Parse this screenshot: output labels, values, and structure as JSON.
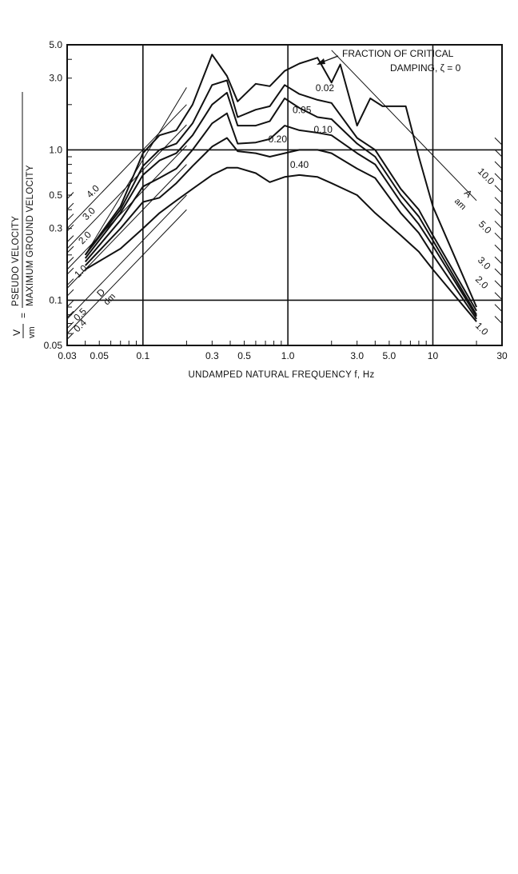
{
  "chart_data": {
    "type": "line",
    "xscale": "log",
    "yscale": "log",
    "xlim": [
      0.03,
      30
    ],
    "ylim": [
      0.05,
      5.0
    ],
    "grid": "major-decades",
    "xlabel": "UNDAMPED NATURAL FREQUENCY f, Hz",
    "ylabel_num": "V",
    "ylabel_den": "vm",
    "ylabel_eq": "=",
    "ylabel_top": "PSEUDO VELOCITY",
    "ylabel_bottom": "MAXIMUM GROUND VELOCITY",
    "xticks": [
      {
        "v": 0.03,
        "label": "0.03"
      },
      {
        "v": 0.05,
        "label": "0.05"
      },
      {
        "v": 0.1,
        "label": "0.1"
      },
      {
        "v": 0.3,
        "label": "0.3"
      },
      {
        "v": 0.5,
        "label": "0.5"
      },
      {
        "v": 1.0,
        "label": "1.0"
      },
      {
        "v": 3.0,
        "label": "3.0"
      },
      {
        "v": 5.0,
        "label": "5.0"
      },
      {
        "v": 10,
        "label": "10"
      },
      {
        "v": 30,
        "label": "30"
      }
    ],
    "yticks": [
      {
        "v": 0.05,
        "label": "0.05"
      },
      {
        "v": 0.1,
        "label": "0.1"
      },
      {
        "v": 0.3,
        "label": "0.3"
      },
      {
        "v": 0.5,
        "label": "0.5"
      },
      {
        "v": 1.0,
        "label": "1.0"
      },
      {
        "v": 3.0,
        "label": "3.0"
      },
      {
        "v": 5.0,
        "label": "5.0"
      }
    ],
    "annotation_title_1": "FRACTION OF CRITICAL",
    "annotation_title_2": "DAMPING, ζ = 0",
    "series": [
      {
        "name": "0",
        "x": [
          0.04,
          0.07,
          0.1,
          0.13,
          0.17,
          0.22,
          0.3,
          0.38,
          0.45,
          0.6,
          0.75,
          0.95,
          1.2,
          1.6,
          2.0,
          2.3,
          3.0,
          3.7,
          4.5,
          6.5,
          8,
          10,
          20
        ],
        "y": [
          0.2,
          0.42,
          0.95,
          1.25,
          1.35,
          2.0,
          4.3,
          3.1,
          2.1,
          2.75,
          2.65,
          3.35,
          3.75,
          4.1,
          2.8,
          3.7,
          1.45,
          2.2,
          1.95,
          1.95,
          0.9,
          0.42,
          0.09
        ]
      },
      {
        "name": "0.02",
        "x": [
          0.04,
          0.07,
          0.1,
          0.13,
          0.17,
          0.22,
          0.3,
          0.38,
          0.45,
          0.6,
          0.75,
          0.95,
          1.2,
          1.6,
          2.0,
          3.0,
          4.0,
          6.0,
          8,
          10,
          20
        ],
        "y": [
          0.2,
          0.4,
          0.78,
          1.0,
          1.1,
          1.5,
          2.7,
          2.9,
          1.65,
          1.85,
          1.95,
          2.7,
          2.35,
          2.15,
          2.05,
          1.2,
          1.0,
          0.55,
          0.4,
          0.27,
          0.085
        ]
      },
      {
        "name": "0.05",
        "x": [
          0.04,
          0.07,
          0.1,
          0.13,
          0.17,
          0.22,
          0.3,
          0.38,
          0.45,
          0.6,
          0.75,
          0.95,
          1.2,
          1.6,
          2.0,
          3.0,
          4.0,
          6.0,
          8,
          10,
          20
        ],
        "y": [
          0.19,
          0.38,
          0.68,
          0.85,
          0.95,
          1.25,
          2.0,
          2.4,
          1.45,
          1.45,
          1.55,
          2.2,
          1.9,
          1.65,
          1.6,
          1.1,
          0.9,
          0.5,
          0.36,
          0.25,
          0.08
        ]
      },
      {
        "name": "0.10",
        "x": [
          0.04,
          0.07,
          0.1,
          0.13,
          0.17,
          0.22,
          0.3,
          0.38,
          0.45,
          0.6,
          0.75,
          0.95,
          1.2,
          1.6,
          2.0,
          3.0,
          4.0,
          6.0,
          8,
          10,
          20
        ],
        "y": [
          0.18,
          0.34,
          0.57,
          0.65,
          0.75,
          1.0,
          1.5,
          1.75,
          1.1,
          1.12,
          1.18,
          1.45,
          1.35,
          1.3,
          1.25,
          0.95,
          0.8,
          0.45,
          0.32,
          0.23,
          0.078
        ]
      },
      {
        "name": "0.20",
        "x": [
          0.04,
          0.07,
          0.1,
          0.13,
          0.17,
          0.22,
          0.3,
          0.38,
          0.45,
          0.6,
          0.75,
          0.95,
          1.2,
          1.6,
          2.0,
          3.0,
          4.0,
          6.0,
          8,
          10,
          20
        ],
        "y": [
          0.17,
          0.3,
          0.45,
          0.48,
          0.6,
          0.78,
          1.05,
          1.2,
          0.98,
          0.95,
          0.9,
          0.95,
          1.0,
          1.0,
          0.95,
          0.75,
          0.65,
          0.38,
          0.28,
          0.2,
          0.075
        ]
      },
      {
        "name": "0.40",
        "x": [
          0.04,
          0.07,
          0.1,
          0.13,
          0.17,
          0.22,
          0.3,
          0.38,
          0.45,
          0.6,
          0.75,
          0.95,
          1.2,
          1.6,
          2.0,
          3.0,
          4.0,
          6.0,
          8,
          10,
          20
        ],
        "y": [
          0.16,
          0.22,
          0.3,
          0.38,
          0.46,
          0.55,
          0.68,
          0.76,
          0.76,
          0.7,
          0.61,
          0.66,
          0.68,
          0.66,
          0.6,
          0.5,
          0.38,
          0.27,
          0.21,
          0.16,
          0.072
        ]
      }
    ],
    "curve_labels": [
      {
        "text": "0.02",
        "x": 1.8,
        "y": 2.45
      },
      {
        "text": "0.05",
        "x": 1.25,
        "y": 1.75
      },
      {
        "text": "0.10",
        "x": 1.75,
        "y": 1.3
      },
      {
        "text": "0.20",
        "x": 0.85,
        "y": 1.12
      },
      {
        "text": "0.40",
        "x": 1.2,
        "y": 0.76
      }
    ],
    "displacement_scale": {
      "label": "D",
      "label_den": "dm",
      "ticks": [
        "0.4",
        "0.5",
        "1.0",
        "2.0",
        "3.0",
        "4.0"
      ]
    },
    "acceleration_scale": {
      "label": "A",
      "label_den": "am",
      "ticks": [
        "1.0",
        "2.0",
        "3.0",
        "5.0",
        "10.0"
      ]
    }
  }
}
